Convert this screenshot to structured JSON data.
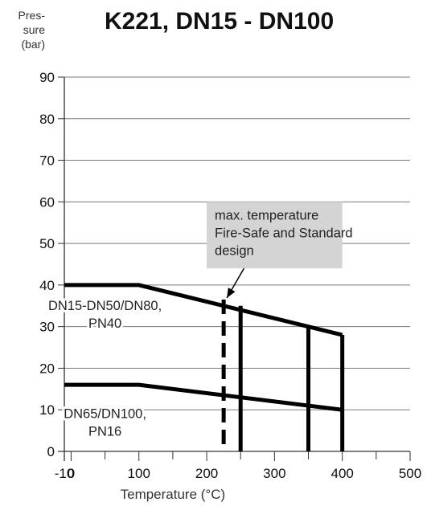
{
  "chart_data": {
    "type": "line",
    "title": "K221, DN15 - DN100",
    "ylabel_lines": [
      "Pres-",
      "sure",
      "(bar)"
    ],
    "xlabel": "Temperature (°C)",
    "xlim": [
      -10,
      500
    ],
    "ylim": [
      0,
      90
    ],
    "xticks": [
      -10,
      0,
      100,
      200,
      300,
      400,
      500
    ],
    "yticks": [
      0,
      10,
      20,
      30,
      40,
      50,
      60,
      70,
      80,
      90
    ],
    "grid": true,
    "series": [
      {
        "name": "DN15-DN50/DN80, PN40",
        "label_lines": [
          "DN15-DN50/DN80,",
          "PN40"
        ],
        "x": [
          -10,
          100,
          400
        ],
        "y": [
          40,
          40,
          28
        ]
      },
      {
        "name": "DN65/DN100, PN16",
        "label_lines": [
          "DN65/DN100,",
          "PN16"
        ],
        "x": [
          -10,
          100,
          400
        ],
        "y": [
          16,
          16,
          10
        ]
      }
    ],
    "vertical_limits": [
      {
        "x": 225,
        "y_top": 36.5,
        "style": "dashed"
      },
      {
        "x": 250,
        "y_top": 35,
        "style": "solid"
      },
      {
        "x": 350,
        "y_top": 30,
        "style": "solid"
      },
      {
        "x": 400,
        "y_top": 28,
        "style": "solid"
      }
    ],
    "annotation": {
      "lines": [
        "max. temperature",
        "Fire-Safe and Standard",
        "design"
      ],
      "box_x": [
        200,
        400
      ],
      "box_y": [
        44,
        60
      ],
      "arrow_to": [
        225,
        36.5
      ]
    }
  }
}
